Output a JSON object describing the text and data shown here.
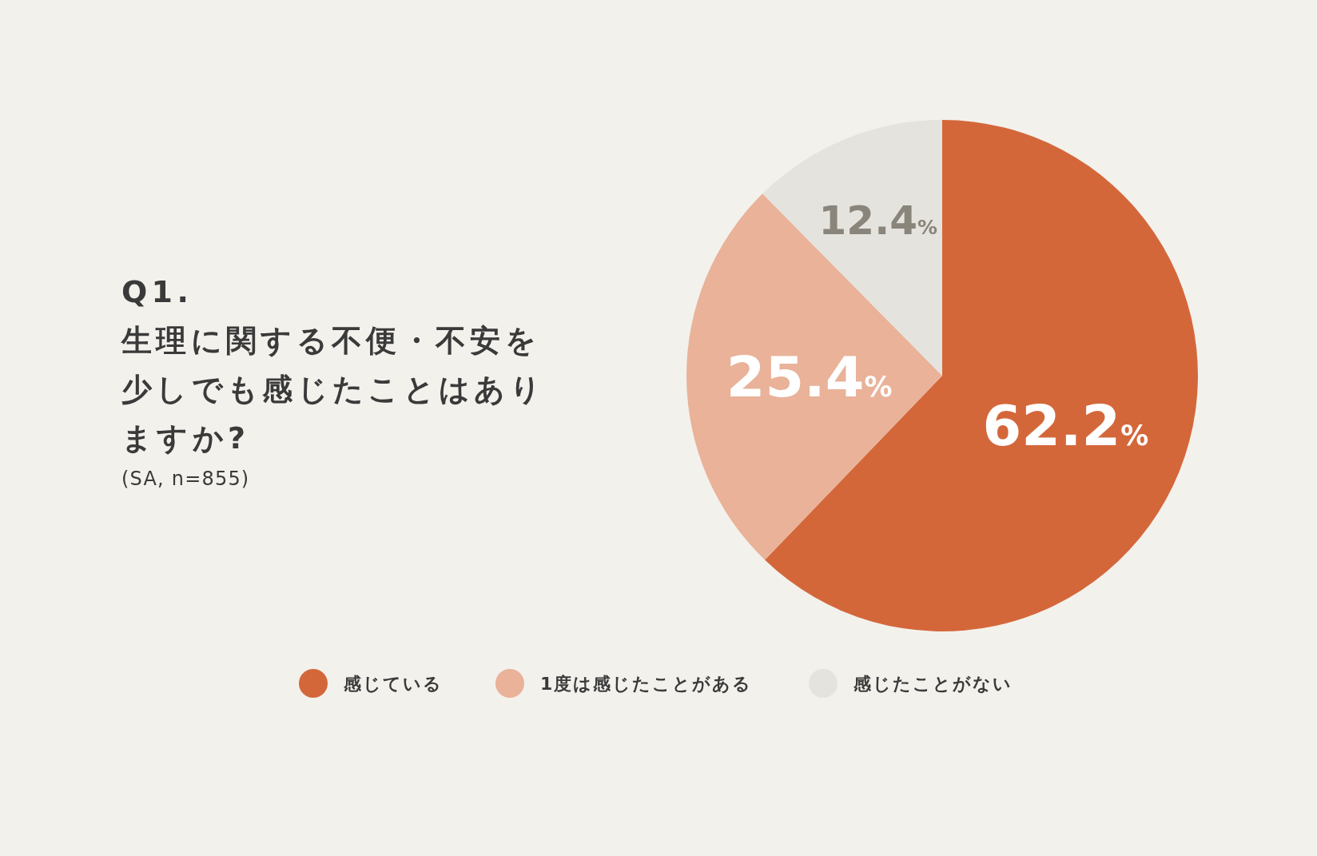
{
  "chart_data": {
    "type": "pie",
    "title": "Q1.\n生理に関する不便・不安を少しでも感じたことはありますか?",
    "subtitle": "(SA, n=855)",
    "categories": [
      "感じている",
      "1度は感じたことがある",
      "感じたことがない"
    ],
    "values": [
      62.2,
      25.4,
      12.4
    ],
    "colors": [
      "#d4673a",
      "#e9b299",
      "#e5e3dd"
    ],
    "value_labels": [
      "62.2%",
      "25.4%",
      "12.4%"
    ],
    "legend": "bottom"
  }
}
